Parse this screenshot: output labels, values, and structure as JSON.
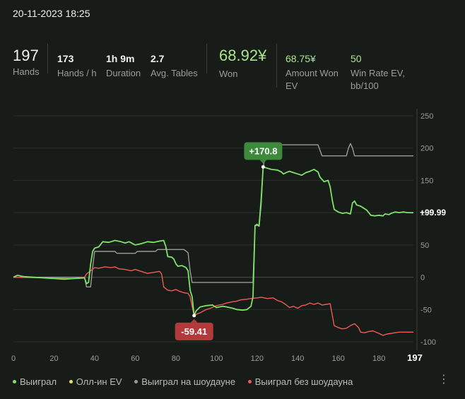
{
  "datetime": "20-11-2023 18:25",
  "stats": {
    "hands": {
      "value": "197",
      "label": "Hands"
    },
    "hands_per_hour": {
      "value": "173",
      "label": "Hands / h"
    },
    "duration": {
      "value": "1h 9m",
      "label": "Duration"
    },
    "avg_tables": {
      "value": "2.7",
      "label": "Avg. Tables"
    },
    "won": {
      "value": "68.92¥",
      "label": "Won"
    },
    "amount_won_ev": {
      "value": "68.75¥",
      "label": "Amount Won EV"
    },
    "win_rate_ev": {
      "value": "50",
      "label": "Win Rate EV, bb/100"
    }
  },
  "legend": [
    {
      "label": "Выиграл",
      "color": "#7ee26a"
    },
    {
      "label": "Олл-ин EV",
      "color": "#e6e35a"
    },
    {
      "label": "Выиграл на шоудауне",
      "color": "#9a9a9a"
    },
    {
      "label": "Выиграл без шоудауна",
      "color": "#ef5a55"
    }
  ],
  "more_icon": "more-vertical-icon",
  "chart_data": {
    "type": "line",
    "xlim": [
      0,
      197
    ],
    "ylim": [
      -100,
      250
    ],
    "x_ticks": [
      0,
      20,
      40,
      60,
      80,
      100,
      120,
      140,
      160,
      180
    ],
    "x_end_label": "197",
    "y_ticks": [
      250,
      200,
      150,
      100,
      50,
      0,
      -50,
      -100
    ],
    "grid": true,
    "annotations": {
      "max": {
        "label": "+170.8",
        "x": 123,
        "y": 170.8,
        "color": "#3d8a3d"
      },
      "min": {
        "label": "-59.41",
        "x": 89,
        "y": -59.41,
        "color": "#b33a3a"
      },
      "end": {
        "label": "+99.99",
        "y": 99.99
      }
    },
    "series": [
      {
        "name": "Выиграл",
        "color": "#7ee26a",
        "points": [
          [
            0,
            0
          ],
          [
            2,
            3
          ],
          [
            5,
            1
          ],
          [
            10,
            0
          ],
          [
            15,
            -1
          ],
          [
            20,
            -2
          ],
          [
            25,
            -3
          ],
          [
            30,
            -2
          ],
          [
            35,
            -1
          ],
          [
            36,
            -10
          ],
          [
            37,
            -8
          ],
          [
            38,
            20
          ],
          [
            39,
            40
          ],
          [
            40,
            45
          ],
          [
            42,
            47
          ],
          [
            44,
            55
          ],
          [
            47,
            54
          ],
          [
            50,
            57
          ],
          [
            53,
            55
          ],
          [
            55,
            53
          ],
          [
            57,
            55
          ],
          [
            60,
            50
          ],
          [
            63,
            52
          ],
          [
            66,
            55
          ],
          [
            69,
            54
          ],
          [
            72,
            56
          ],
          [
            74,
            57
          ],
          [
            75,
            48
          ],
          [
            76,
            32
          ],
          [
            78,
            31
          ],
          [
            79,
            28
          ],
          [
            80,
            21
          ],
          [
            81,
            17
          ],
          [
            83,
            18
          ],
          [
            85,
            15
          ],
          [
            86,
            10
          ],
          [
            87,
            -20
          ],
          [
            88,
            -30
          ],
          [
            89,
            -59.41
          ],
          [
            90,
            -52
          ],
          [
            92,
            -46
          ],
          [
            95,
            -44
          ],
          [
            98,
            -43
          ],
          [
            100,
            -47
          ],
          [
            103,
            -45
          ],
          [
            105,
            -46
          ],
          [
            108,
            -48
          ],
          [
            110,
            -50
          ],
          [
            113,
            -51
          ],
          [
            115,
            -50
          ],
          [
            117,
            -45
          ],
          [
            118,
            -30
          ],
          [
            119,
            80
          ],
          [
            120,
            82
          ],
          [
            121,
            79
          ],
          [
            122,
            120
          ],
          [
            123,
            170.8
          ],
          [
            125,
            169
          ],
          [
            127,
            167
          ],
          [
            130,
            166
          ],
          [
            132,
            163
          ],
          [
            133,
            160
          ],
          [
            135,
            163
          ],
          [
            136,
            164
          ],
          [
            138,
            162
          ],
          [
            140,
            160
          ],
          [
            142,
            158
          ],
          [
            144,
            162
          ],
          [
            146,
            164
          ],
          [
            148,
            167
          ],
          [
            149,
            165
          ],
          [
            150,
            163
          ],
          [
            151,
            155
          ],
          [
            153,
            148
          ],
          [
            155,
            150
          ],
          [
            156,
            140
          ],
          [
            157,
            120
          ],
          [
            158,
            105
          ],
          [
            160,
            101
          ],
          [
            162,
            99
          ],
          [
            164,
            100
          ],
          [
            166,
            98
          ],
          [
            167,
            115
          ],
          [
            168,
            118
          ],
          [
            169,
            112
          ],
          [
            171,
            110
          ],
          [
            172,
            108
          ],
          [
            174,
            104
          ],
          [
            175,
            100
          ],
          [
            176,
            96
          ],
          [
            178,
            95
          ],
          [
            180,
            96
          ],
          [
            182,
            95
          ],
          [
            183,
            98
          ],
          [
            185,
            97
          ],
          [
            186,
            99
          ],
          [
            188,
            101
          ],
          [
            190,
            100
          ],
          [
            192,
            101
          ],
          [
            194,
            100
          ],
          [
            197,
            99.99
          ]
        ]
      },
      {
        "name": "Выиграл на шоудауне",
        "color": "#9a9a9a",
        "points": [
          [
            0,
            0
          ],
          [
            35,
            0
          ],
          [
            36,
            -15
          ],
          [
            38,
            -15
          ],
          [
            39,
            15
          ],
          [
            40,
            40
          ],
          [
            50,
            40
          ],
          [
            51,
            37
          ],
          [
            60,
            37
          ],
          [
            61,
            40
          ],
          [
            70,
            40
          ],
          [
            71,
            43
          ],
          [
            84,
            43
          ],
          [
            86,
            38
          ],
          [
            87,
            10
          ],
          [
            88,
            -8
          ],
          [
            118,
            -8
          ],
          [
            119,
            80
          ],
          [
            121,
            80
          ],
          [
            122,
            110
          ],
          [
            123,
            170
          ],
          [
            125,
            205
          ],
          [
            150,
            205
          ],
          [
            152,
            188
          ],
          [
            164,
            188
          ],
          [
            165,
            200
          ],
          [
            166,
            207
          ],
          [
            167,
            200
          ],
          [
            168,
            188
          ],
          [
            197,
            188
          ]
        ]
      },
      {
        "name": "Выиграл без шоудауна",
        "color": "#ef5a55",
        "points": [
          [
            0,
            0
          ],
          [
            30,
            -2
          ],
          [
            35,
            0
          ],
          [
            36,
            5
          ],
          [
            38,
            10
          ],
          [
            40,
            15
          ],
          [
            42,
            14
          ],
          [
            45,
            16
          ],
          [
            48,
            15
          ],
          [
            50,
            16
          ],
          [
            52,
            13
          ],
          [
            55,
            12
          ],
          [
            58,
            10
          ],
          [
            60,
            12
          ],
          [
            62,
            10
          ],
          [
            64,
            8
          ],
          [
            66,
            6
          ],
          [
            68,
            7
          ],
          [
            70,
            8
          ],
          [
            72,
            9
          ],
          [
            73,
            5
          ],
          [
            74,
            -15
          ],
          [
            76,
            -20
          ],
          [
            78,
            -21
          ],
          [
            80,
            -19
          ],
          [
            82,
            -22
          ],
          [
            84,
            -24
          ],
          [
            86,
            -25
          ],
          [
            87,
            -30
          ],
          [
            88,
            -45
          ],
          [
            89,
            -59.4
          ],
          [
            91,
            -56
          ],
          [
            92,
            -55
          ],
          [
            95,
            -50
          ],
          [
            97,
            -48
          ],
          [
            100,
            -44
          ],
          [
            103,
            -42
          ],
          [
            105,
            -40
          ],
          [
            108,
            -38
          ],
          [
            110,
            -37
          ],
          [
            112,
            -35
          ],
          [
            115,
            -34
          ],
          [
            117,
            -33
          ],
          [
            120,
            -32
          ],
          [
            122,
            -31
          ],
          [
            125,
            -33
          ],
          [
            128,
            -32
          ],
          [
            130,
            -36
          ],
          [
            132,
            -38
          ],
          [
            134,
            -42
          ],
          [
            136,
            -47
          ],
          [
            138,
            -45
          ],
          [
            140,
            -48
          ],
          [
            142,
            -44
          ],
          [
            144,
            -43
          ],
          [
            146,
            -40
          ],
          [
            148,
            -42
          ],
          [
            150,
            -40
          ],
          [
            152,
            -43
          ],
          [
            154,
            -42
          ],
          [
            156,
            -41
          ],
          [
            157,
            -58
          ],
          [
            158,
            -75
          ],
          [
            160,
            -78
          ],
          [
            162,
            -80
          ],
          [
            164,
            -79
          ],
          [
            166,
            -75
          ],
          [
            168,
            -72
          ],
          [
            170,
            -78
          ],
          [
            171,
            -85
          ],
          [
            173,
            -86
          ],
          [
            175,
            -84
          ],
          [
            177,
            -83
          ],
          [
            180,
            -87
          ],
          [
            182,
            -90
          ],
          [
            184,
            -88
          ],
          [
            186,
            -87
          ],
          [
            188,
            -86
          ],
          [
            190,
            -85
          ],
          [
            197,
            -85
          ]
        ]
      }
    ]
  }
}
